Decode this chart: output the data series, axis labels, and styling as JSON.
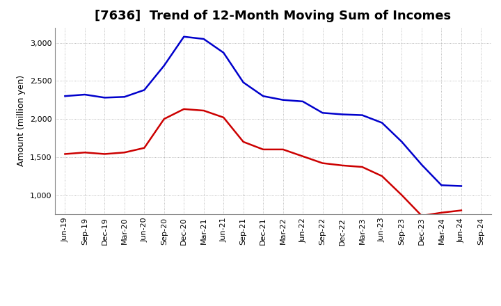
{
  "title": "[7636]  Trend of 12-Month Moving Sum of Incomes",
  "ylabel": "Amount (million yen)",
  "background_color": "#ffffff",
  "grid_color": "#aaaaaa",
  "x_labels": [
    "Jun-19",
    "Sep-19",
    "Dec-19",
    "Mar-20",
    "Jun-20",
    "Sep-20",
    "Dec-20",
    "Mar-21",
    "Jun-21",
    "Sep-21",
    "Dec-21",
    "Mar-22",
    "Jun-22",
    "Sep-22",
    "Dec-22",
    "Mar-23",
    "Jun-23",
    "Sep-23",
    "Dec-23",
    "Mar-24",
    "Jun-24",
    "Sep-24"
  ],
  "ordinary_income": [
    2300,
    2320,
    2280,
    2290,
    2380,
    2700,
    3080,
    3050,
    2870,
    2480,
    2300,
    2250,
    2230,
    2080,
    2060,
    2050,
    1950,
    1700,
    1400,
    1130,
    1120,
    null
  ],
  "net_income": [
    1540,
    1560,
    1540,
    1560,
    1620,
    2000,
    2130,
    2110,
    2020,
    1700,
    1600,
    1600,
    1510,
    1420,
    1390,
    1370,
    1250,
    1000,
    730,
    770,
    800,
    null
  ],
  "ordinary_color": "#0000cc",
  "net_color": "#cc0000",
  "line_width": 1.8,
  "ylim_min": 750,
  "ylim_max": 3200,
  "yticks": [
    1000,
    1500,
    2000,
    2500,
    3000
  ],
  "title_fontsize": 13,
  "axis_fontsize": 9,
  "tick_fontsize": 8,
  "legend_fontsize": 9.5
}
